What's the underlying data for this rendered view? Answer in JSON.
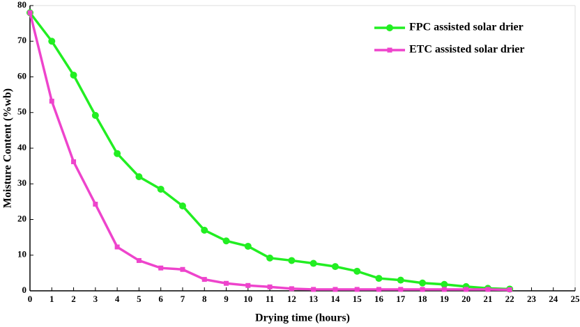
{
  "chart_data": {
    "type": "line",
    "xlabel": "Drying time (hours)",
    "ylabel": "Moisture Content (%wb)",
    "x": [
      0,
      1,
      2,
      3,
      4,
      5,
      6,
      7,
      8,
      9,
      10,
      11,
      12,
      13,
      14,
      15,
      16,
      17,
      18,
      19,
      20,
      21,
      22
    ],
    "series": [
      {
        "name": "FPC assisted solar drier",
        "color": "#22ee22",
        "marker": "circle",
        "values": [
          78,
          70,
          60.5,
          49.2,
          38.5,
          32,
          28.5,
          23.8,
          17,
          14,
          12.5,
          9.2,
          8.5,
          7.7,
          6.8,
          5.5,
          3.5,
          3,
          2.2,
          1.8,
          1.2,
          0.7,
          0.5
        ]
      },
      {
        "name": "ETC assisted solar drier",
        "color": "#ee44cc",
        "marker": "square",
        "values": [
          78,
          53.2,
          36.2,
          24.3,
          12.3,
          8.5,
          6.4,
          6,
          3.2,
          2.1,
          1.5,
          1.1,
          0.6,
          0.4,
          0.4,
          0.4,
          0.4,
          0.4,
          0.4,
          0.4,
          0.4,
          0.4,
          0.3
        ]
      }
    ],
    "xlim": [
      0,
      25
    ],
    "xticks": [
      0,
      1,
      2,
      3,
      4,
      5,
      6,
      7,
      8,
      9,
      10,
      11,
      12,
      13,
      14,
      15,
      16,
      17,
      18,
      19,
      20,
      21,
      22,
      23,
      24,
      25
    ],
    "ylim": [
      0,
      80
    ],
    "yticks": [
      0,
      10,
      20,
      30,
      40,
      50,
      60,
      70,
      80
    ],
    "grid": false,
    "legend": "upper right"
  }
}
